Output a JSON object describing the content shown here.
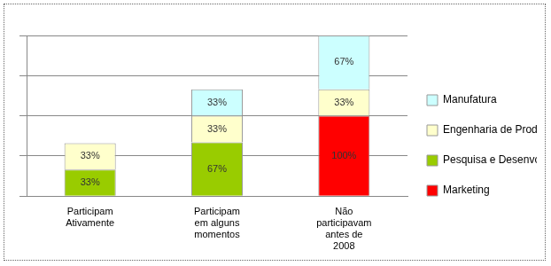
{
  "chart_data": {
    "type": "bar",
    "stacked": true,
    "categories": [
      "Participam Ativamente",
      "Participam em alguns momentos",
      "Não participavam antes de 2008"
    ],
    "series": [
      {
        "name": "Marketing",
        "color": "#ff0000",
        "values": [
          null,
          null,
          100
        ],
        "value_labels": [
          null,
          null,
          "100%"
        ]
      },
      {
        "name": "Pesquisa e Desenvolvimento",
        "color": "#99cc00",
        "values": [
          33,
          67,
          null
        ],
        "value_labels": [
          "33%",
          "67%",
          null
        ]
      },
      {
        "name": "Engenharia de Produto",
        "color": "#ffffcc",
        "values": [
          33,
          33,
          33
        ],
        "value_labels": [
          "33%",
          "33%",
          "33%"
        ]
      },
      {
        "name": "Manufatura",
        "color": "#ccffff",
        "values": [
          null,
          33,
          67
        ],
        "value_labels": [
          null,
          "33%",
          "67%"
        ]
      }
    ],
    "ylim": [
      0,
      200
    ],
    "yticks": [
      0,
      50,
      100,
      150,
      200
    ],
    "grid": true,
    "data_labels": true,
    "tick_labels": "x",
    "legend": "right"
  }
}
